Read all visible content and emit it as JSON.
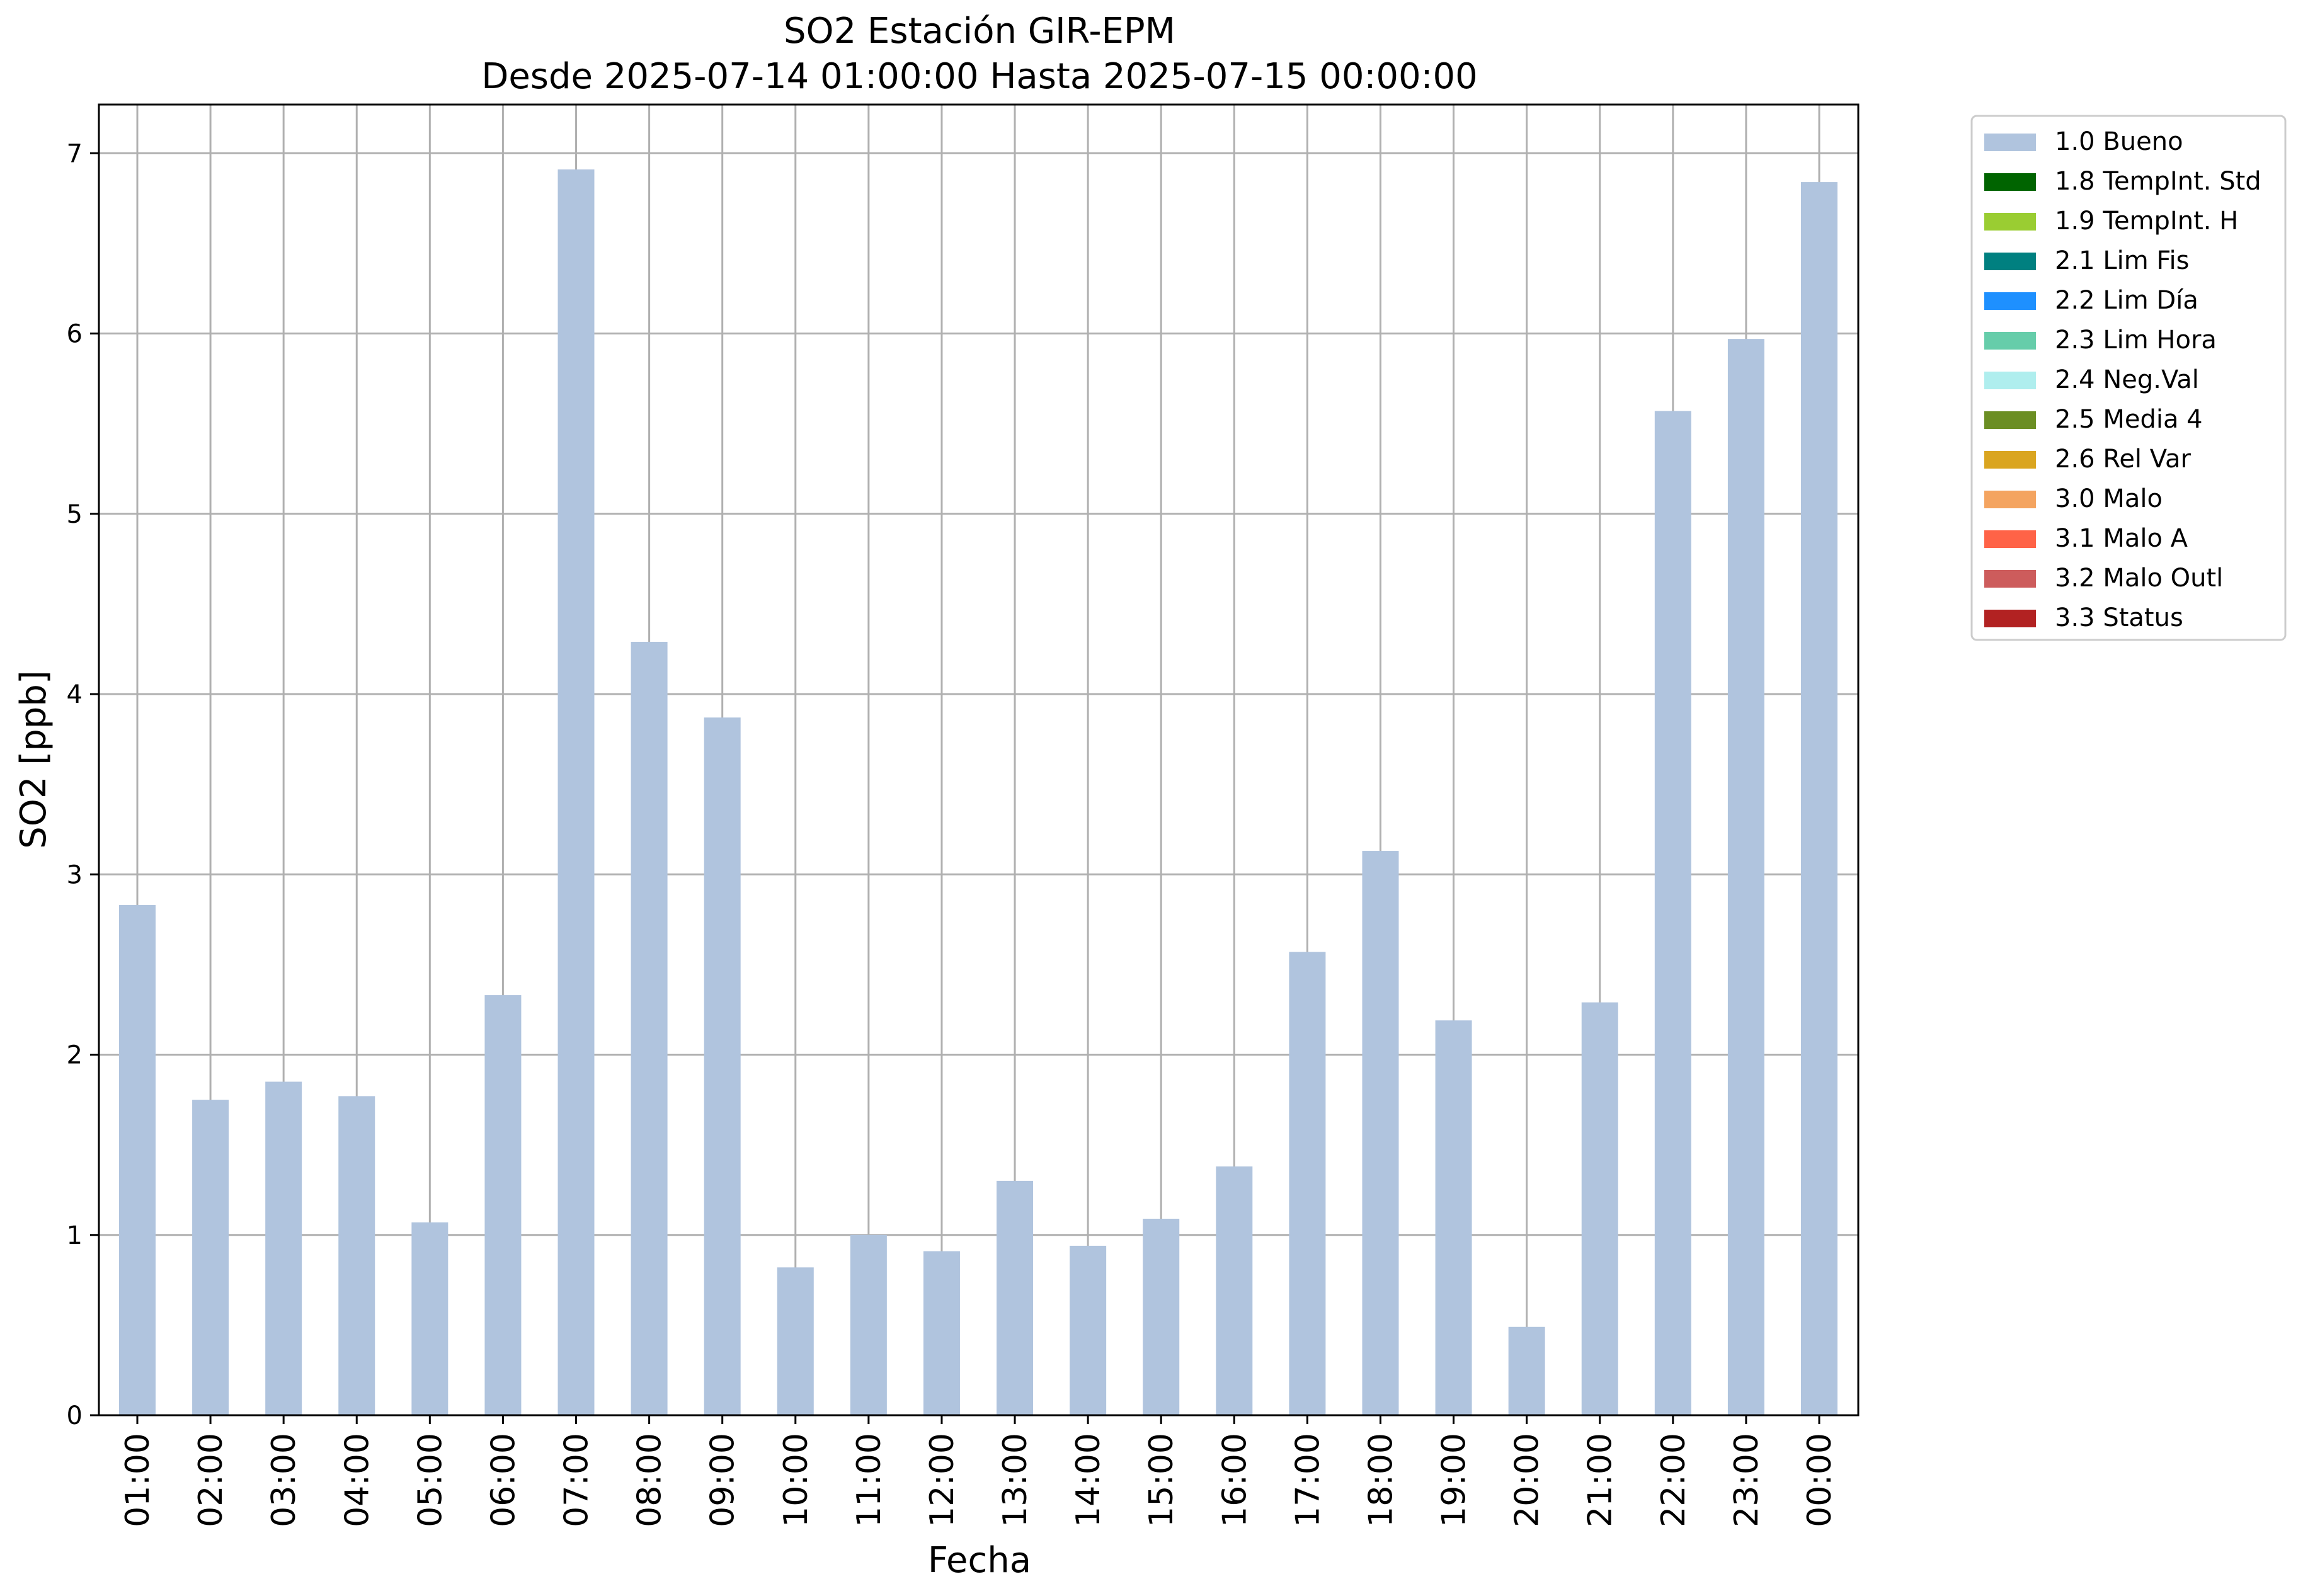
{
  "chart_data": {
    "type": "bar",
    "title": "SO2 Estación GIR-EPM",
    "subtitle": "Desde 2025-07-14 01:00:00 Hasta 2025-07-15 00:00:00",
    "xlabel": "Fecha",
    "ylabel": "SO2 [ppb]",
    "ylim": [
      0,
      7.27
    ],
    "yticks": [
      0,
      1,
      2,
      3,
      4,
      5,
      6,
      7
    ],
    "grid": true,
    "legend_position": "outside-top-right",
    "categories": [
      "01:00",
      "02:00",
      "03:00",
      "04:00",
      "05:00",
      "06:00",
      "07:00",
      "08:00",
      "09:00",
      "10:00",
      "11:00",
      "12:00",
      "13:00",
      "14:00",
      "15:00",
      "16:00",
      "17:00",
      "18:00",
      "19:00",
      "20:00",
      "21:00",
      "22:00",
      "23:00",
      "00:00"
    ],
    "series": [
      {
        "name": "1.0 Bueno",
        "color": "#b0c4de",
        "values": [
          2.83,
          1.75,
          1.85,
          1.77,
          1.07,
          2.33,
          6.91,
          4.29,
          3.87,
          0.82,
          1.0,
          0.91,
          1.3,
          0.94,
          1.09,
          1.38,
          2.57,
          3.13,
          2.19,
          0.49,
          2.29,
          5.57,
          5.97,
          6.84
        ]
      }
    ],
    "legend": [
      {
        "label": "1.0 Bueno",
        "color": "#b0c4de"
      },
      {
        "label": "1.8 TempInt. Std",
        "color": "#006400"
      },
      {
        "label": "1.9 TempInt. H",
        "color": "#9acd32"
      },
      {
        "label": "2.1 Lim Fis",
        "color": "#008080"
      },
      {
        "label": "2.2 Lim Día",
        "color": "#1e90ff"
      },
      {
        "label": "2.3 Lim Hora",
        "color": "#66cdaa"
      },
      {
        "label": "2.4 Neg.Val",
        "color": "#afeeee"
      },
      {
        "label": "2.5 Media 4",
        "color": "#6b8e23"
      },
      {
        "label": "2.6 Rel Var",
        "color": "#daa520"
      },
      {
        "label": "3.0 Malo",
        "color": "#f4a460"
      },
      {
        "label": "3.1 Malo A",
        "color": "#ff6347"
      },
      {
        "label": "3.2 Malo Outl",
        "color": "#cd5c5c"
      },
      {
        "label": "3.3 Status",
        "color": "#b22222"
      }
    ]
  }
}
